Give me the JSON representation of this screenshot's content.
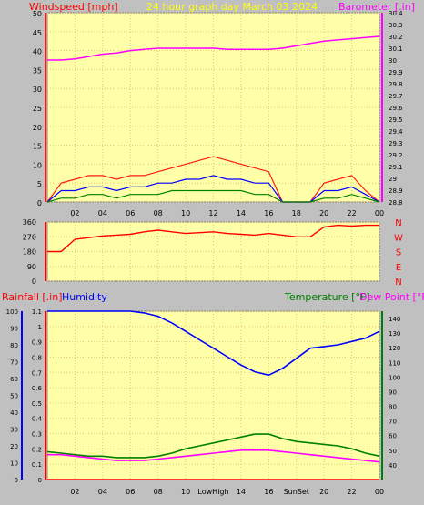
{
  "title": "24 hour graph day   March 03 2024",
  "colors": {
    "plot_bg": "#ffffa8",
    "page_bg": "#c0c0c0",
    "gust": "#ff1a1a",
    "average": "#0000ff",
    "lull": "#008000",
    "barometer": "#ff00ff",
    "direction": "#ff0000",
    "humidity": "#0000ff",
    "temperature": "#008000",
    "dew_point": "#ff00ff",
    "rainfall": "#ff0000",
    "grid": "#e2c87a"
  },
  "x_ticks": [
    "02",
    "04",
    "06",
    "08",
    "10",
    "12",
    "14",
    "16",
    "18",
    "20",
    "22",
    "00"
  ],
  "bottom_x_ticks": [
    "02",
    "04",
    "06",
    "08",
    "10",
    "LowHigh",
    "14",
    "16",
    "SunSet",
    "20",
    "22",
    "00"
  ],
  "chart_data": [
    {
      "type": "line",
      "name": "wind-barometer",
      "labels": {
        "left": "Windspeed [mph]",
        "right": "Barometer [.in]"
      },
      "y_left": {
        "min": 0,
        "max": 50,
        "ticks": [
          0,
          5,
          10,
          15,
          20,
          25,
          30,
          35,
          40,
          45,
          50
        ]
      },
      "y_right": {
        "min": 28.8,
        "max": 30.4,
        "ticks": [
          "28.8",
          "28.9",
          "29",
          "29.1",
          "29.2",
          "29.3",
          "29.4",
          "29.5",
          "29.6",
          "29.7",
          "29.8",
          "29.9",
          "30",
          "30.1",
          "30.2",
          "30.3",
          "30.4"
        ]
      },
      "x": [
        0,
        1,
        2,
        3,
        4,
        5,
        6,
        7,
        8,
        9,
        10,
        11,
        12,
        13,
        14,
        15,
        16,
        17,
        18,
        19,
        20,
        21,
        22,
        23,
        24
      ],
      "series": [
        {
          "name": "gust",
          "axis": "left",
          "values": [
            0,
            5,
            6,
            7,
            7,
            6,
            7,
            7,
            8,
            9,
            10,
            11,
            12,
            11,
            10,
            9,
            8,
            0,
            0,
            0,
            5,
            6,
            7,
            3,
            0
          ]
        },
        {
          "name": "average",
          "axis": "left",
          "values": [
            0,
            3,
            3,
            4,
            4,
            3,
            4,
            4,
            5,
            5,
            6,
            6,
            7,
            6,
            6,
            5,
            5,
            0,
            0,
            0,
            3,
            3,
            4,
            2,
            0
          ]
        },
        {
          "name": "lull",
          "axis": "left",
          "values": [
            0,
            1,
            1,
            2,
            2,
            1,
            2,
            2,
            2,
            3,
            3,
            3,
            3,
            3,
            3,
            2,
            2,
            0,
            0,
            0,
            1,
            1,
            2,
            1,
            0
          ]
        },
        {
          "name": "barometer",
          "axis": "right",
          "values": [
            30.0,
            30.0,
            30.01,
            30.03,
            30.05,
            30.06,
            30.08,
            30.09,
            30.1,
            30.1,
            30.1,
            30.1,
            30.1,
            30.09,
            30.09,
            30.09,
            30.09,
            30.1,
            30.12,
            30.14,
            30.16,
            30.17,
            30.18,
            30.19,
            30.2
          ]
        }
      ]
    },
    {
      "type": "line",
      "name": "wind-direction",
      "y_left": {
        "min": 0,
        "max": 360,
        "ticks": [
          0,
          90,
          180,
          270,
          360
        ]
      },
      "y_right_labels": [
        "N",
        "W",
        "S",
        "E",
        "N"
      ],
      "x": [
        0,
        1,
        2,
        3,
        4,
        5,
        6,
        7,
        8,
        9,
        10,
        11,
        12,
        13,
        14,
        15,
        16,
        17,
        18,
        19,
        20,
        21,
        22,
        23,
        24
      ],
      "series": [
        {
          "name": "direction",
          "values": [
            180,
            180,
            255,
            265,
            275,
            280,
            285,
            300,
            310,
            300,
            290,
            295,
            300,
            290,
            285,
            280,
            290,
            280,
            270,
            270,
            330,
            340,
            335,
            340,
            340
          ]
        }
      ]
    },
    {
      "type": "line",
      "name": "temperature-humidity",
      "labels": {
        "rainfall": "Rainfall [.in]",
        "humidity": "Humidity",
        "temperature": "Temperature [°F]",
        "dew_point": "Dew Point [°F]"
      },
      "y_humidity": {
        "min": 0,
        "max": 100,
        "ticks": [
          0,
          10,
          20,
          30,
          40,
          50,
          60,
          70,
          80,
          90,
          100
        ]
      },
      "y_rain": {
        "min": 0,
        "max": 1.1,
        "ticks": [
          "0",
          "0.1",
          "0.2",
          "0.3",
          "0.4",
          "0.5",
          "0.6",
          "0.7",
          "0.8",
          "0.9",
          "1",
          "1.1"
        ]
      },
      "y_temp": {
        "min": 30,
        "max": 145,
        "ticks": [
          40,
          50,
          60,
          70,
          80,
          90,
          100,
          110,
          120,
          130,
          140
        ]
      },
      "x": [
        0,
        1,
        2,
        3,
        4,
        5,
        6,
        7,
        8,
        9,
        10,
        11,
        12,
        13,
        14,
        15,
        16,
        17,
        18,
        19,
        20,
        21,
        22,
        23,
        24
      ],
      "series": [
        {
          "name": "humidity",
          "axis": "humidity",
          "values": [
            100,
            100,
            100,
            100,
            100,
            100,
            100,
            99,
            97,
            93,
            88,
            83,
            78,
            73,
            68,
            64,
            62,
            66,
            72,
            78,
            79,
            80,
            82,
            84,
            88
          ]
        },
        {
          "name": "temperature",
          "axis": "temp",
          "values": [
            49,
            48,
            47,
            46,
            46,
            45,
            45,
            45,
            46,
            48,
            51,
            53,
            55,
            57,
            59,
            61,
            61,
            58,
            56,
            55,
            54,
            53,
            51,
            48,
            46
          ]
        },
        {
          "name": "dew_point",
          "axis": "temp",
          "values": [
            47,
            47,
            46,
            45,
            44,
            43,
            43,
            43,
            44,
            45,
            46,
            47,
            48,
            49,
            50,
            50,
            50,
            49,
            48,
            47,
            46,
            45,
            44,
            43,
            42
          ]
        },
        {
          "name": "rainfall",
          "axis": "rain",
          "values": [
            0,
            0,
            0,
            0,
            0,
            0,
            0,
            0,
            0,
            0,
            0,
            0,
            0,
            0,
            0,
            0,
            0,
            0,
            0,
            0,
            0,
            0,
            0,
            0,
            0
          ]
        }
      ]
    }
  ]
}
